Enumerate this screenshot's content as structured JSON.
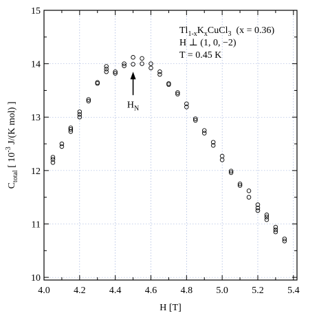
{
  "chart_data": {
    "type": "scatter",
    "xlabel": "H [T]",
    "ylabel": {
      "base": "C",
      "sub": "total",
      "rest_before_sup": " [ 10",
      "sup": "-3",
      "rest_after_sup": " J/(K mol) ]"
    },
    "xlim": [
      4.0,
      5.42
    ],
    "ylim": [
      9.95,
      15.0
    ],
    "xticks": [
      4.0,
      4.2,
      4.4,
      4.6,
      4.8,
      5.0,
      5.2,
      5.4
    ],
    "xtick_labels": [
      "4.0",
      "4.2",
      "4.4",
      "4.6",
      "4.8",
      "5.0",
      "5.2",
      "5.4"
    ],
    "yticks": [
      10,
      11,
      12,
      13,
      14,
      15
    ],
    "ytick_labels": [
      "10",
      "11",
      "12",
      "13",
      "14",
      "15"
    ],
    "grid": true,
    "marker": "open-circle",
    "series": [
      {
        "points": [
          [
            4.05,
            12.25
          ],
          [
            4.05,
            12.21
          ],
          [
            4.05,
            12.15
          ],
          [
            4.1,
            12.5
          ],
          [
            4.1,
            12.45
          ],
          [
            4.15,
            12.8
          ],
          [
            4.15,
            12.77
          ],
          [
            4.15,
            12.73
          ],
          [
            4.2,
            13.1
          ],
          [
            4.2,
            13.05
          ],
          [
            4.2,
            13.0
          ],
          [
            4.25,
            13.33
          ],
          [
            4.25,
            13.3
          ],
          [
            4.3,
            13.65
          ],
          [
            4.3,
            13.63
          ],
          [
            4.35,
            13.95
          ],
          [
            4.35,
            13.9
          ],
          [
            4.35,
            13.85
          ],
          [
            4.4,
            13.85
          ],
          [
            4.4,
            13.82
          ],
          [
            4.45,
            14.0
          ],
          [
            4.45,
            13.96
          ],
          [
            4.5,
            14.12
          ],
          [
            4.5,
            13.99
          ],
          [
            4.55,
            14.1
          ],
          [
            4.55,
            14.0
          ],
          [
            4.6,
            14.0
          ],
          [
            4.6,
            13.92
          ],
          [
            4.65,
            13.85
          ],
          [
            4.65,
            13.8
          ],
          [
            4.7,
            13.63
          ],
          [
            4.7,
            13.61
          ],
          [
            4.75,
            13.46
          ],
          [
            4.75,
            13.43
          ],
          [
            4.8,
            13.25
          ],
          [
            4.8,
            13.19
          ],
          [
            4.85,
            12.97
          ],
          [
            4.85,
            12.94
          ],
          [
            4.9,
            12.75
          ],
          [
            4.9,
            12.7
          ],
          [
            4.95,
            12.53
          ],
          [
            4.95,
            12.47
          ],
          [
            5.0,
            12.27
          ],
          [
            5.0,
            12.2
          ],
          [
            5.05,
            11.99
          ],
          [
            5.05,
            11.96
          ],
          [
            5.1,
            11.75
          ],
          [
            5.1,
            11.72
          ],
          [
            5.15,
            11.62
          ],
          [
            5.15,
            11.5
          ],
          [
            5.2,
            11.36
          ],
          [
            5.2,
            11.3
          ],
          [
            5.2,
            11.25
          ],
          [
            5.25,
            11.17
          ],
          [
            5.25,
            11.13
          ],
          [
            5.25,
            11.08
          ],
          [
            5.3,
            10.94
          ],
          [
            5.3,
            10.89
          ],
          [
            5.3,
            10.85
          ],
          [
            5.35,
            10.72
          ],
          [
            5.35,
            10.68
          ]
        ]
      }
    ],
    "annotations": [
      {
        "id": "hn",
        "base": "H",
        "sub": "N",
        "arrow_to": [
          4.5,
          13.85
        ],
        "text_at": [
          4.5,
          13.18
        ]
      }
    ],
    "info": {
      "line1": {
        "base": "Tl",
        "sub1": "1-x",
        "mid": "K",
        "sub2": "x",
        "tail": "CuCl",
        "sub3": "3",
        "after": "  (x = 0.36)"
      },
      "line2": "H ⊥ (1, 0, −2)",
      "line3": "T = 0.45 K"
    }
  }
}
